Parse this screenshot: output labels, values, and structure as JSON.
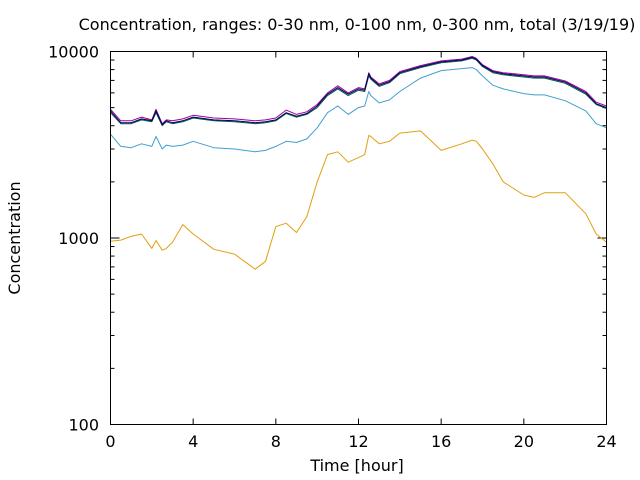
{
  "chart_data": {
    "type": "line",
    "title": "Concentration, ranges: 0-30 nm, 0-100 nm, 0-300 nm, total (3/19/19)",
    "xlabel": "Time [hour]",
    "ylabel": "Concentration",
    "xlim": [
      0,
      24
    ],
    "ylim": [
      100,
      10000
    ],
    "yscale": "log",
    "xticks": [
      0,
      4,
      8,
      12,
      16,
      20,
      24
    ],
    "xtick_labels": [
      "0",
      "4",
      "8",
      "12",
      "16",
      "20",
      "24"
    ],
    "yticks": [
      100,
      1000,
      10000
    ],
    "ytick_labels": [
      "100",
      "1000",
      "10000"
    ],
    "legend": "none",
    "grid": false,
    "x": [
      0,
      0.5,
      1,
      1.5,
      2,
      2.2,
      2.5,
      2.7,
      3,
      3.5,
      4,
      5,
      6,
      7,
      7.5,
      8,
      8.5,
      9,
      9.5,
      10,
      10.5,
      11,
      11.5,
      12,
      12.3,
      12.5,
      12.6,
      13,
      13.5,
      14,
      15,
      16,
      17,
      17.5,
      17.7,
      18,
      18.5,
      19,
      20,
      20.5,
      21,
      22,
      23,
      23.5,
      24
    ],
    "series": [
      {
        "color": "#e0a010",
        "values": [
          960,
          975,
          1020,
          1050,
          880,
          970,
          860,
          880,
          950,
          1180,
          1050,
          870,
          820,
          680,
          750,
          1150,
          1200,
          1070,
          1300,
          2000,
          2800,
          2900,
          2550,
          2700,
          2800,
          3550,
          3500,
          3200,
          3300,
          3650,
          3750,
          2950,
          3200,
          3350,
          3300,
          3000,
          2500,
          2000,
          1700,
          1650,
          1750,
          1750,
          1350,
          1050,
          950
        ]
      },
      {
        "color": "#40a0d0",
        "values": [
          3600,
          3100,
          3050,
          3200,
          3100,
          3500,
          3000,
          3150,
          3100,
          3150,
          3300,
          3050,
          3000,
          2900,
          2950,
          3100,
          3300,
          3250,
          3400,
          3900,
          4700,
          5100,
          4600,
          5000,
          5100,
          6100,
          5800,
          5300,
          5500,
          6100,
          7200,
          7900,
          8100,
          8200,
          8000,
          7400,
          6600,
          6300,
          5950,
          5850,
          5850,
          5450,
          4800,
          4100,
          3900
        ]
      },
      {
        "color": "#006040",
        "values": [
          4700,
          4100,
          4100,
          4300,
          4200,
          4700,
          4000,
          4200,
          4100,
          4200,
          4400,
          4250,
          4200,
          4100,
          4150,
          4250,
          4650,
          4450,
          4600,
          5000,
          5800,
          6300,
          5800,
          6200,
          6100,
          7400,
          7100,
          6500,
          6800,
          7600,
          8200,
          8700,
          8900,
          9200,
          9000,
          8300,
          7700,
          7500,
          7300,
          7200,
          7200,
          6750,
          5900,
          5200,
          4950
        ]
      },
      {
        "color": "#a000a0",
        "values": [
          4900,
          4250,
          4250,
          4450,
          4300,
          4900,
          4100,
          4300,
          4250,
          4350,
          4550,
          4400,
          4350,
          4250,
          4300,
          4400,
          4850,
          4600,
          4750,
          5200,
          6000,
          6550,
          6000,
          6400,
          6300,
          7700,
          7300,
          6700,
          7000,
          7800,
          8400,
          8900,
          9100,
          9400,
          9200,
          8500,
          7900,
          7700,
          7500,
          7400,
          7400,
          6950,
          6100,
          5350,
          5100
        ]
      },
      {
        "color": "#000060",
        "values": [
          4800,
          4150,
          4150,
          4350,
          4250,
          4800,
          4050,
          4250,
          4150,
          4250,
          4450,
          4300,
          4250,
          4150,
          4200,
          4300,
          4700,
          4500,
          4650,
          5100,
          5900,
          6400,
          5900,
          6300,
          6200,
          7600,
          7200,
          6600,
          6900,
          7700,
          8300,
          8800,
          9000,
          9300,
          9100,
          8400,
          7800,
          7600,
          7400,
          7300,
          7300,
          6850,
          6000,
          5250,
          5000
        ]
      }
    ]
  }
}
